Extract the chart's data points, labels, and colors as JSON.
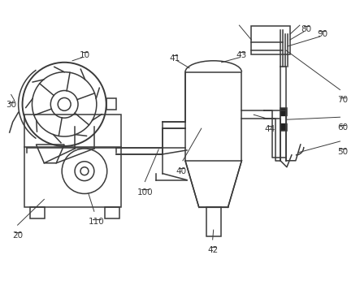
{
  "bg_color": "#ffffff",
  "line_color": "#3a3a3a",
  "lw": 1.1,
  "font_size": 7.5
}
